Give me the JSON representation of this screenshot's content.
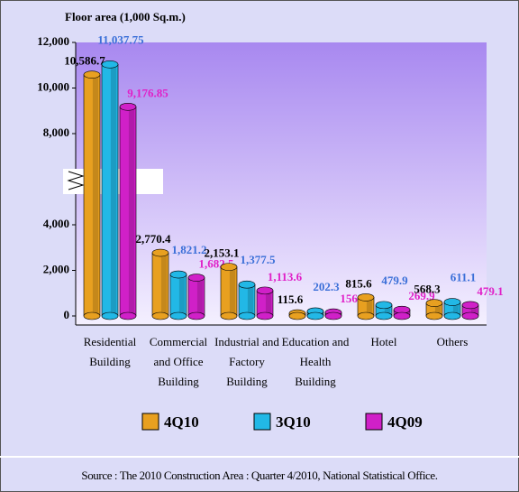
{
  "chart_data": {
    "type": "bar",
    "title": "Floor  area (1,000 Sq.m.)",
    "categories": [
      "Residential Building",
      "Commercial and Office Building",
      "Industrial and Factory Building",
      "Education and Health Building",
      "Hotel",
      "Others"
    ],
    "series": [
      {
        "name": "4Q10",
        "color": "#e8a020",
        "label_color": "#000000",
        "values": [
          10586.7,
          2770.4,
          2153.1,
          115.6,
          815.6,
          568.3
        ],
        "value_labels": [
          "10,586.7",
          "2,770.4",
          "2,153.1",
          "115.6",
          "815.6",
          "568.3"
        ]
      },
      {
        "name": "3Q10",
        "color": "#22b8e6",
        "label_color": "#3a6fd8",
        "values": [
          11037.75,
          1821.2,
          1377.5,
          202.3,
          479.9,
          611.1
        ],
        "value_labels": [
          "11,037.75",
          "1,821.2",
          "1,377.5",
          "202.3",
          "479.9",
          "611.1"
        ]
      },
      {
        "name": "4Q09",
        "color": "#d020c8",
        "label_color": "#e020c8",
        "values": [
          9176.85,
          1682.5,
          1113.6,
          156.3,
          269.9,
          479.1
        ],
        "value_labels": [
          "9,176.85",
          "1,682.5",
          "1,113.6",
          "156.3",
          "269.9",
          "479.1"
        ]
      }
    ],
    "ylim": [
      0,
      12000
    ],
    "yticks": [
      0,
      {
        "value": 2000,
        "label": "2,000"
      },
      {
        "value": 4000,
        "label": "4,000"
      },
      {
        "value": 8000,
        "label": "8,000"
      },
      {
        "value": 10000,
        "label": "10,000"
      },
      {
        "value": 12000,
        "label": "12,000"
      }
    ],
    "source": "Source : The 2010 Construction Area : Quarter 4/2010, National Statistical Office."
  }
}
